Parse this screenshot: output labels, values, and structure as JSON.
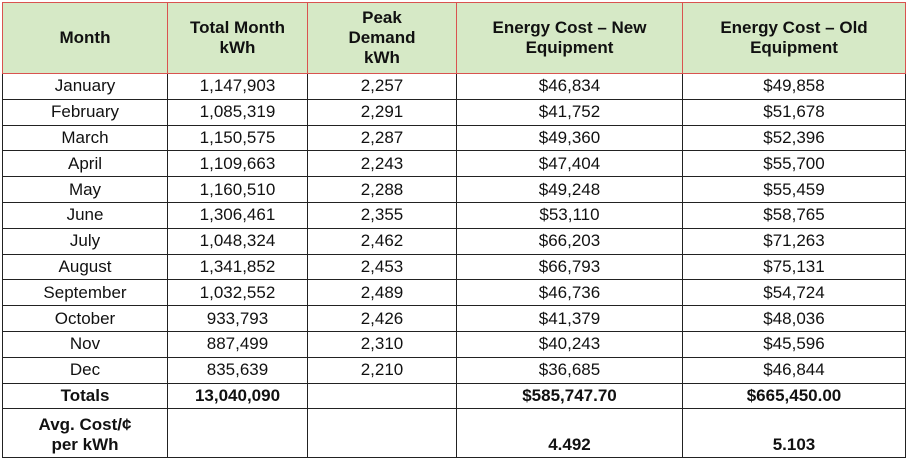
{
  "table": {
    "header": [
      "Month",
      "Total Month kWh",
      "Peak Demand kWh",
      "Energy Cost – New Equipment",
      "Energy Cost – Old Equipment"
    ],
    "rows": [
      [
        "January",
        "1,147,903",
        "2,257",
        "$46,834",
        "$49,858"
      ],
      [
        "February",
        "1,085,319",
        "2,291",
        "$41,752",
        "$51,678"
      ],
      [
        "March",
        "1,150,575",
        "2,287",
        "$49,360",
        "$52,396"
      ],
      [
        "April",
        "1,109,663",
        "2,243",
        "$47,404",
        "$55,700"
      ],
      [
        "May",
        "1,160,510",
        "2,288",
        "$49,248",
        "$55,459"
      ],
      [
        "June",
        "1,306,461",
        "2,355",
        "$53,110",
        "$58,765"
      ],
      [
        "July",
        "1,048,324",
        "2,462",
        "$66,203",
        "$71,263"
      ],
      [
        "August",
        "1,341,852",
        "2,453",
        "$66,793",
        "$75,131"
      ],
      [
        "September",
        "1,032,552",
        "2,489",
        "$46,736",
        "$54,724"
      ],
      [
        "October",
        "933,793",
        "2,426",
        "$41,379",
        "$48,036"
      ],
      [
        "Nov",
        "887,499",
        "2,310",
        "$40,243",
        "$45,596"
      ],
      [
        "Dec",
        "835,639",
        "2,210",
        "$36,685",
        "$46,844"
      ],
      [
        "Totals",
        "13,040,090",
        null,
        "$585,747.70",
        "$665,450.00"
      ],
      [
        "Avg. Cost/¢ per kWh",
        null,
        null,
        "4.492",
        "5.103"
      ]
    ]
  }
}
